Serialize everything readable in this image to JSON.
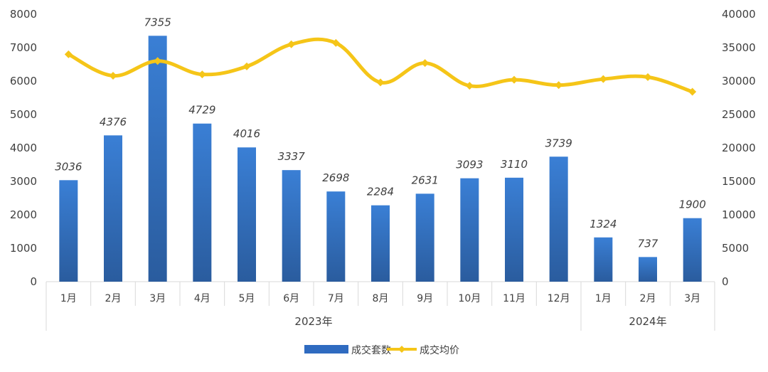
{
  "chart_data": {
    "type": "bar",
    "categories": [
      "1月",
      "2月",
      "3月",
      "4月",
      "5月",
      "6月",
      "7月",
      "8月",
      "9月",
      "10月",
      "11月",
      "12月",
      "1月",
      "2月",
      "3月"
    ],
    "groups": [
      {
        "label": "2023年",
        "count": 12
      },
      {
        "label": "2024年",
        "count": 3
      }
    ],
    "series": [
      {
        "name": "成交套数",
        "type": "bar",
        "axis": "left",
        "color": "#2f6bc0",
        "values": [
          3036,
          4376,
          7355,
          4729,
          4016,
          3337,
          2698,
          2284,
          2631,
          3093,
          3110,
          3739,
          1324,
          737,
          1900
        ],
        "labels": [
          "3036",
          "4376",
          "7355",
          "4729",
          "4016",
          "3337",
          "2698",
          "2284",
          "2631",
          "3093",
          "3110",
          "3739",
          "1324",
          "737",
          "1900"
        ]
      },
      {
        "name": "成交均价",
        "type": "line",
        "axis": "right",
        "color": "#f5c518",
        "values": [
          34000,
          30800,
          33000,
          31000,
          32200,
          35500,
          35700,
          29800,
          32700,
          29300,
          30200,
          29400,
          30300,
          30600,
          28400
        ]
      }
    ],
    "y_left": {
      "min": 0,
      "max": 8000,
      "ticks": [
        "0",
        "1000",
        "2000",
        "3000",
        "4000",
        "5000",
        "6000",
        "7000",
        "8000"
      ]
    },
    "y_right": {
      "min": 0,
      "max": 40000,
      "ticks": [
        "0",
        "5000",
        "10000",
        "15000",
        "20000",
        "25000",
        "30000",
        "35000",
        "40000"
      ]
    },
    "grid": false,
    "legend": "bottom-center"
  }
}
